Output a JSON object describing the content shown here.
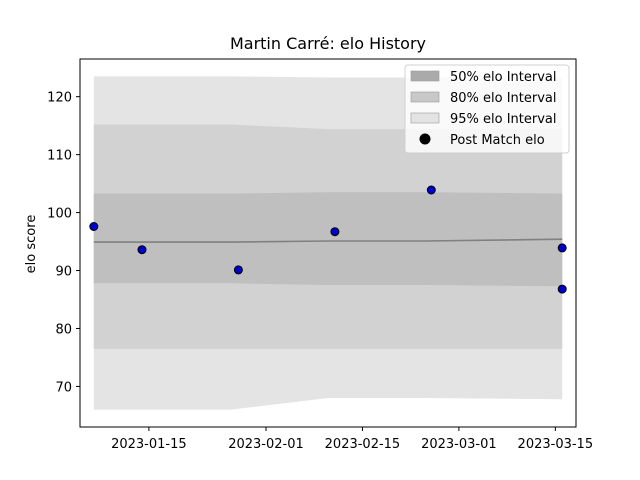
{
  "chart_data": {
    "type": "line",
    "title": "Martin Carré: elo History",
    "xlabel": "",
    "ylabel": "elo score",
    "x_ticks": [
      "2023-01-15",
      "2023-02-01",
      "2023-02-15",
      "2023-03-01",
      "2023-03-15"
    ],
    "y_ticks": [
      70,
      80,
      90,
      100,
      110,
      120
    ],
    "xlim": [
      "2023-01-05",
      "2023-03-18"
    ],
    "ylim": [
      63,
      126.5
    ],
    "x": [
      "2023-01-07",
      "2023-01-27",
      "2023-02-10",
      "2023-02-24",
      "2023-03-16"
    ],
    "mean": [
      94.9,
      94.9,
      95.1,
      95.1,
      95.4
    ],
    "band_50": {
      "lower": [
        87.8,
        87.8,
        87.5,
        87.5,
        87.3
      ],
      "upper": [
        103.3,
        103.3,
        103.5,
        103.5,
        103.3
      ]
    },
    "band_80": {
      "lower": [
        76.5,
        76.5,
        76.5,
        76.5,
        76.5
      ],
      "upper": [
        115.2,
        115.2,
        114.4,
        114.4,
        114.4
      ]
    },
    "band_95": {
      "lower": [
        66.0,
        66.0,
        68.0,
        68.0,
        67.8
      ],
      "upper": [
        123.5,
        123.5,
        123.3,
        123.3,
        123.3
      ]
    },
    "points": [
      {
        "x": "2023-01-07",
        "y": 97.6
      },
      {
        "x": "2023-01-14",
        "y": 93.6
      },
      {
        "x": "2023-01-28",
        "y": 90.1
      },
      {
        "x": "2023-02-11",
        "y": 96.7
      },
      {
        "x": "2023-02-25",
        "y": 103.9
      },
      {
        "x": "2023-03-16",
        "y": 93.9
      },
      {
        "x": "2023-03-16",
        "y": 86.8
      }
    ],
    "legend": {
      "position": "top-right",
      "entries": [
        {
          "label": "50% elo Interval",
          "kind": "band",
          "color": "#aaaaaa"
        },
        {
          "label": "80% elo Interval",
          "kind": "band",
          "color": "#c8c8c8"
        },
        {
          "label": "95% elo Interval",
          "kind": "band",
          "color": "#e3e3e3"
        },
        {
          "label": "Post Match elo",
          "kind": "marker",
          "color": "#000000"
        }
      ]
    },
    "colors": {
      "band_50": "#bfbfbf",
      "band_80": "#d2d2d2",
      "band_95": "#e4e4e4",
      "mean_line": "#808080",
      "marker_fill": "#0000cc",
      "marker_edge": "#000000"
    },
    "grid": false
  }
}
